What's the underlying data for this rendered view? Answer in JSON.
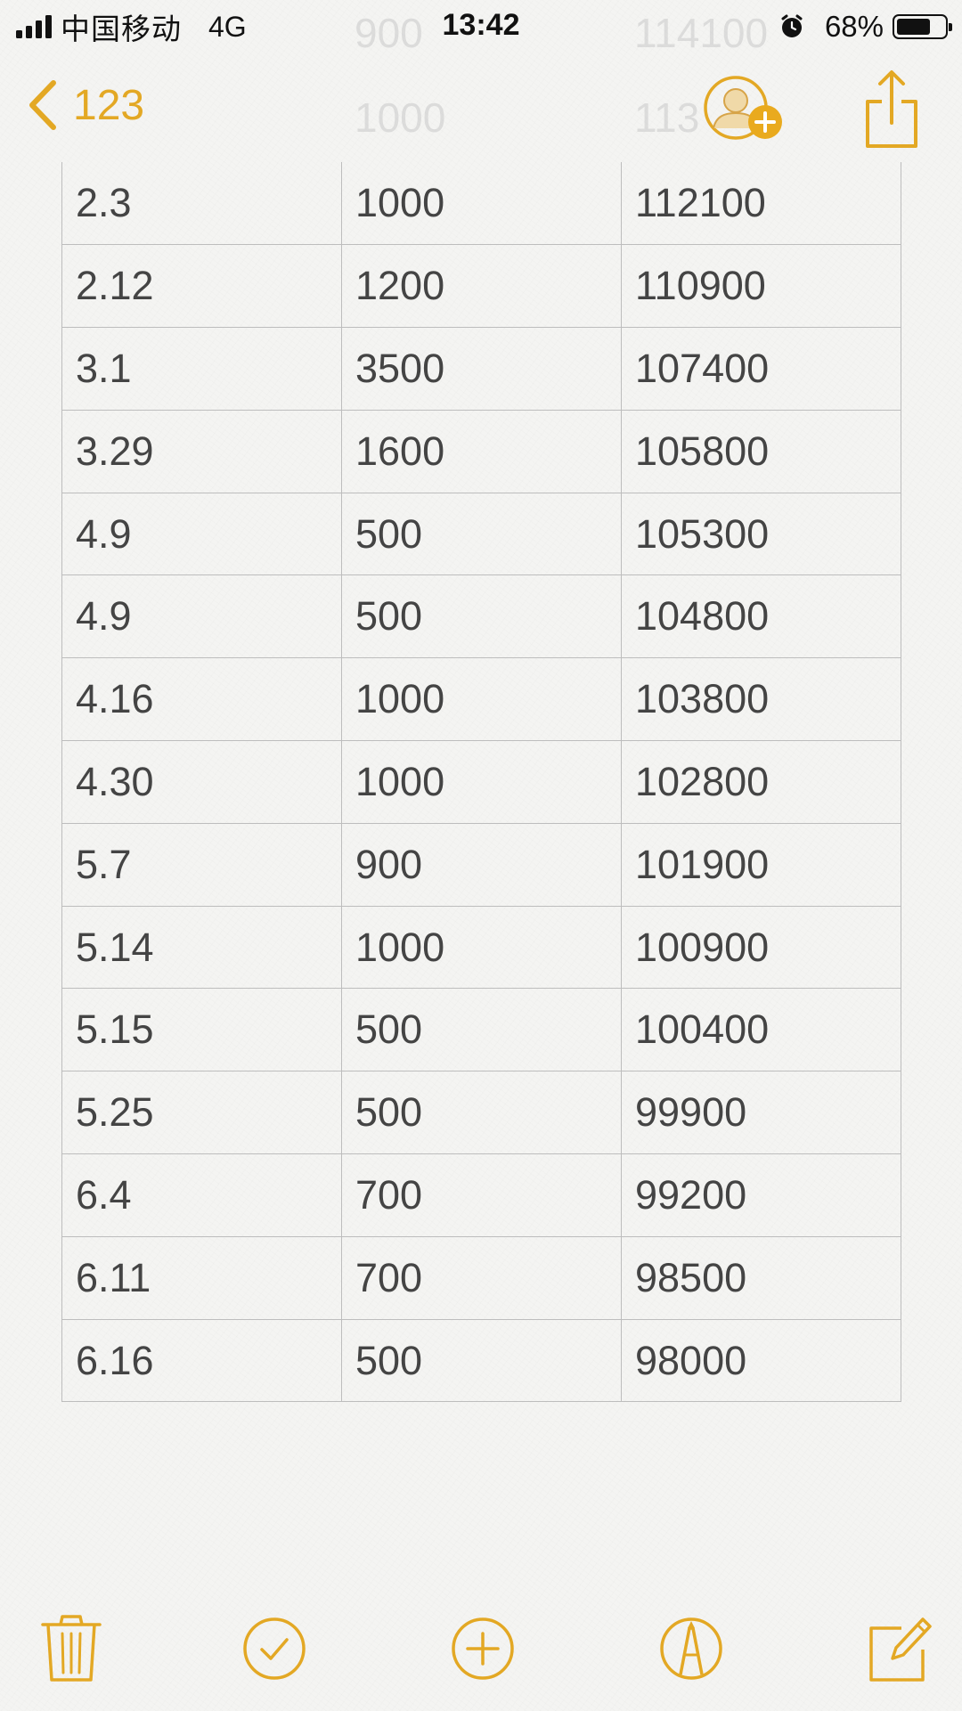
{
  "status_bar": {
    "carrier": "中国移动",
    "network": "4G",
    "time": "13:42",
    "battery_percent": "68%",
    "battery_level": 0.68,
    "icons": [
      "signal-icon",
      "alarm-icon",
      "battery-icon"
    ]
  },
  "nav": {
    "back_label": "123",
    "icons": [
      "back-chevron-icon",
      "add-person-icon",
      "share-icon"
    ]
  },
  "ghost_rows": [
    {
      "c1": "",
      "c2": "900",
      "c3": "114100"
    },
    {
      "c1": "",
      "c2": "1000",
      "c3": "113"
    }
  ],
  "table": {
    "rows": [
      {
        "c1": "2.3",
        "c2": "1000",
        "c3": "112100"
      },
      {
        "c1": "2.12",
        "c2": "1200",
        "c3": "110900"
      },
      {
        "c1": "3.1",
        "c2": "3500",
        "c3": "107400"
      },
      {
        "c1": "3.29",
        "c2": "1600",
        "c3": "105800"
      },
      {
        "c1": "4.9",
        "c2": "500",
        "c3": "105300"
      },
      {
        "c1": "4.9",
        "c2": "500",
        "c3": "104800"
      },
      {
        "c1": "4.16",
        "c2": "1000",
        "c3": "103800"
      },
      {
        "c1": "4.30",
        "c2": "1000",
        "c3": "102800"
      },
      {
        "c1": "5.7",
        "c2": "900",
        "c3": "101900"
      },
      {
        "c1": "5.14",
        "c2": "1000",
        "c3": "100900"
      },
      {
        "c1": "5.15",
        "c2": "500",
        "c3": "100400"
      },
      {
        "c1": "5.25",
        "c2": "500",
        "c3": "99900"
      },
      {
        "c1": "6.4",
        "c2": "700",
        "c3": "99200"
      },
      {
        "c1": "6.11",
        "c2": "700",
        "c3": "98500"
      },
      {
        "c1": "6.16",
        "c2": "500",
        "c3": "98000"
      }
    ]
  },
  "toolbar": {
    "icons": [
      "trash-icon",
      "checklist-icon",
      "add-icon",
      "sketch-icon",
      "compose-icon"
    ]
  },
  "colors": {
    "accent": "#e3a824",
    "text": "#444444",
    "grid": "#bdbdbd",
    "paper": "#f4f4f2"
  }
}
